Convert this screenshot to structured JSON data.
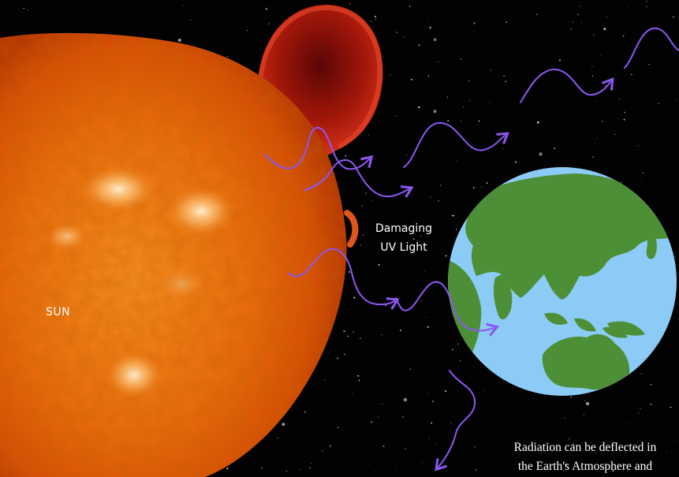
{
  "labels": {
    "sun": "SUN",
    "uv_line1": "Damaging",
    "uv_line2": "UV Light",
    "note_line1": "Radiation can be deflected in",
    "note_line2": "the Earth's Atmosphere and"
  },
  "colors": {
    "space": "#020203",
    "sun_core": "#ef7a12",
    "sun_edge": "#c93a05",
    "prominence": "#b31a0a",
    "ocean": "#8ccbf5",
    "land": "#4d8f36",
    "wave": "#8c58f0",
    "text": "#ffffff"
  }
}
